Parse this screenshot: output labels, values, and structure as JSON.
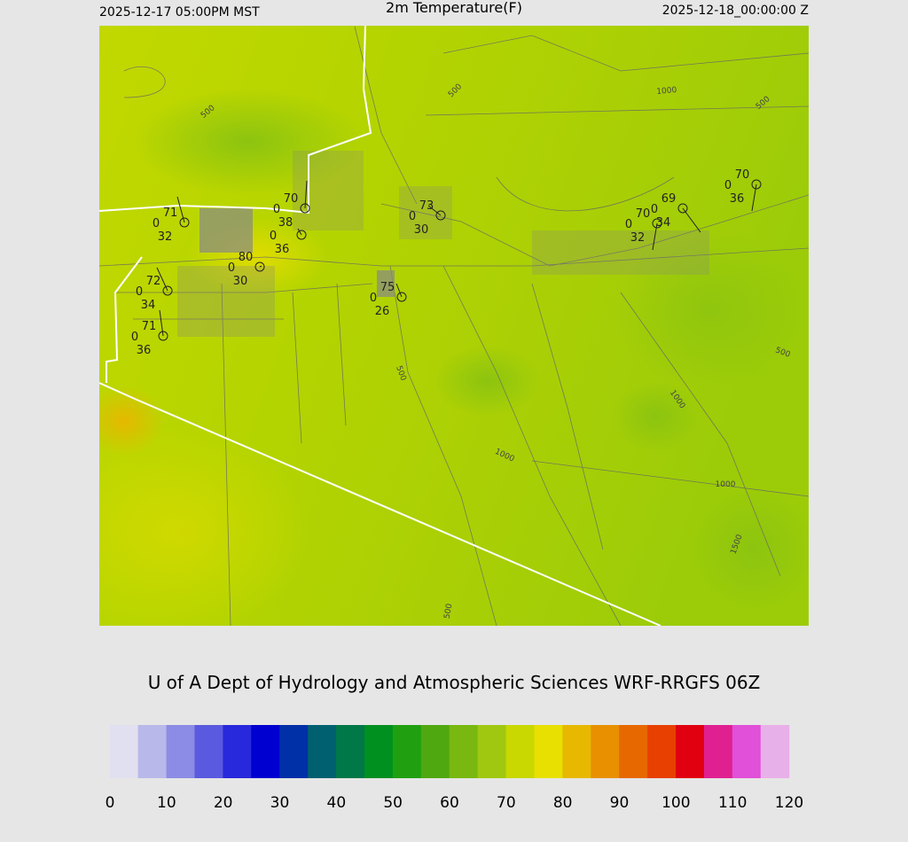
{
  "header": {
    "left": "2025-12-17 05:00PM MST",
    "title": "2m Temperature(F)",
    "right": "2025-12-18_00:00:00 Z"
  },
  "credit": "U of A Dept of Hydrology and Atmospheric Sciences WRF-RRGFS 06Z",
  "stations": [
    {
      "temp": 71,
      "wind": 0,
      "dew": 32
    },
    {
      "temp": 70,
      "wind": 0,
      "dew": 38
    },
    {
      "wind": 0,
      "dew": 36
    },
    {
      "temp": 80,
      "wind": 0,
      "dew": 30
    },
    {
      "temp": 72,
      "wind": 0,
      "dew": 34
    },
    {
      "temp": 71,
      "wind": 0,
      "dew": 36
    },
    {
      "temp": 73,
      "wind": 0,
      "dew": 30
    },
    {
      "temp": 75,
      "wind": 0,
      "dew": 26
    },
    {
      "temp": 70,
      "wind": 0,
      "dew": 32
    },
    {
      "temp": 69,
      "wind": 0,
      "dew": 34
    },
    {
      "temp": 70,
      "wind": 0,
      "dew": 36
    }
  ],
  "contour_labels": [
    500,
    1000,
    500,
    500,
    500,
    500,
    1000,
    1000,
    1000,
    1500,
    500
  ],
  "colorbar": {
    "lim": [
      0,
      120
    ],
    "ticks": [
      0,
      10,
      20,
      30,
      40,
      50,
      60,
      70,
      80,
      90,
      100,
      110,
      120
    ],
    "colors": [
      "#e0e0f0",
      "#b8b8ea",
      "#8c8ce6",
      "#5a5ae0",
      "#2828dc",
      "#0000d0",
      "#0030a8",
      "#006070",
      "#007848",
      "#009020",
      "#20a010",
      "#50a810",
      "#78b810",
      "#a0c810",
      "#c8d800",
      "#e8e000",
      "#e8b800",
      "#e89000",
      "#e86800",
      "#e84000",
      "#e00010",
      "#e02090",
      "#e050d8",
      "#e8b0e8"
    ]
  }
}
